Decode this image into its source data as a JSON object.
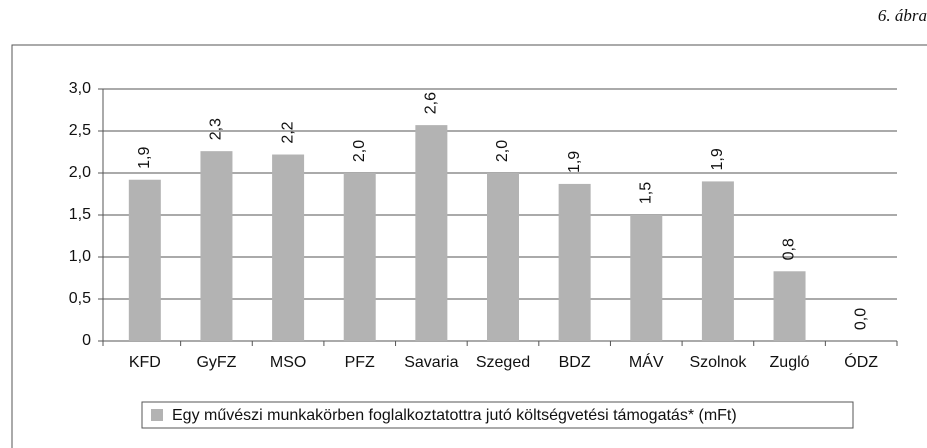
{
  "chart_data": {
    "type": "bar",
    "title": "6. ábra",
    "categories": [
      "KFD",
      "GyFZ",
      "MSO",
      "PFZ",
      "Savaria",
      "Szeged",
      "BDZ",
      "MÁV",
      "Szolnok",
      "Zugló",
      "ÓDZ"
    ],
    "series": [
      {
        "name": "Egy művészi munkakörben foglalkoztatottra jutó költségvetési támogatás* (mFt)",
        "color": "#b3b3b3",
        "values": [
          1.92,
          2.26,
          2.22,
          2.0,
          2.57,
          2.0,
          1.87,
          1.5,
          1.9,
          0.83,
          0.0
        ],
        "value_labels": [
          "1,9",
          "2,3",
          "2,2",
          "2,0",
          "2,6",
          "2,0",
          "1,9",
          "1,5",
          "1,9",
          "0,8",
          "0,0"
        ]
      }
    ],
    "ylim": [
      0,
      3.0
    ],
    "yticks": [
      0,
      {
        "value": 0.5,
        "label": "0,5"
      },
      {
        "value": 1.0,
        "label": "1,0"
      },
      {
        "value": 1.5,
        "label": "1,5"
      },
      {
        "value": 2.0,
        "label": "2,0"
      },
      {
        "value": 2.5,
        "label": "2,5"
      },
      {
        "value": 3.0,
        "label": "3,0"
      }
    ],
    "grid": true,
    "legend": "bottom"
  }
}
